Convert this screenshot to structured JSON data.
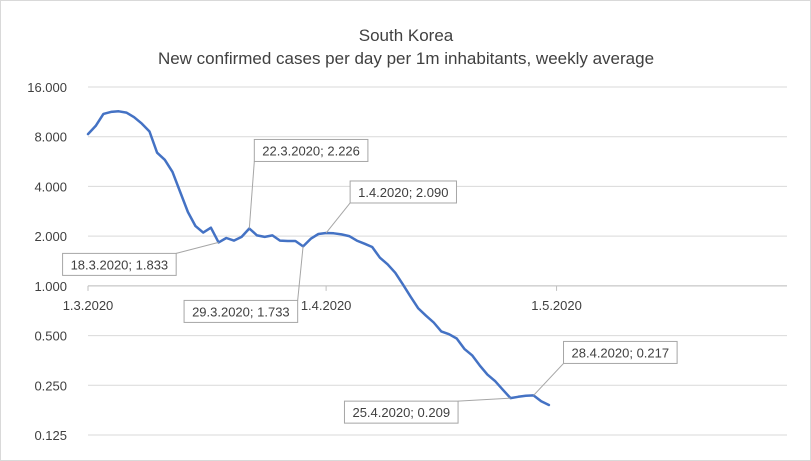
{
  "chart_data": {
    "type": "line",
    "title": [
      "South Korea",
      "New confirmed cases per day per 1m inhabitants, weekly average"
    ],
    "y_scale": "log2",
    "ylim": [
      0.125,
      16
    ],
    "y_ticks": [
      {
        "value": 16,
        "label": "16.000"
      },
      {
        "value": 8,
        "label": "8.000"
      },
      {
        "value": 4,
        "label": "4.000"
      },
      {
        "value": 2,
        "label": "2.000"
      },
      {
        "value": 1,
        "label": "1.000"
      },
      {
        "value": 0.5,
        "label": "0.500"
      },
      {
        "value": 0.25,
        "label": "0.250"
      },
      {
        "value": 0.125,
        "label": "0.125"
      }
    ],
    "x_axis_crosses_at": 1,
    "xlim": [
      "2020-03-01",
      "2020-05-31"
    ],
    "x_ticks": [
      {
        "value": "2020-03-01",
        "label": "1.3.2020"
      },
      {
        "value": "2020-04-01",
        "label": "1.4.2020"
      },
      {
        "value": "2020-05-01",
        "label": "1.5.2020"
      }
    ],
    "grid": true,
    "series_color": "#4472c4",
    "series": [
      {
        "x": [
          "2020-03-01",
          "2020-03-02",
          "2020-03-03",
          "2020-03-04",
          "2020-03-05",
          "2020-03-06",
          "2020-03-07",
          "2020-03-08",
          "2020-03-09",
          "2020-03-10",
          "2020-03-11",
          "2020-03-12",
          "2020-03-13",
          "2020-03-14",
          "2020-03-15",
          "2020-03-16",
          "2020-03-17",
          "2020-03-18",
          "2020-03-19",
          "2020-03-20",
          "2020-03-21",
          "2020-03-22",
          "2020-03-23",
          "2020-03-24",
          "2020-03-25",
          "2020-03-26",
          "2020-03-27",
          "2020-03-28",
          "2020-03-29",
          "2020-03-30",
          "2020-03-31",
          "2020-04-01",
          "2020-04-02",
          "2020-04-03",
          "2020-04-04",
          "2020-04-05",
          "2020-04-06",
          "2020-04-07",
          "2020-04-08",
          "2020-04-09",
          "2020-04-10",
          "2020-04-11",
          "2020-04-12",
          "2020-04-13",
          "2020-04-14",
          "2020-04-15",
          "2020-04-16",
          "2020-04-17",
          "2020-04-18",
          "2020-04-19",
          "2020-04-20",
          "2020-04-21",
          "2020-04-22",
          "2020-04-23",
          "2020-04-24",
          "2020-04-25",
          "2020-04-26",
          "2020-04-27",
          "2020-04-28",
          "2020-04-29",
          "2020-04-30"
        ],
        "y": [
          8.3,
          9.3,
          11.0,
          11.3,
          11.4,
          11.2,
          10.5,
          9.6,
          8.6,
          6.4,
          5.8,
          4.9,
          3.7,
          2.8,
          2.3,
          2.1,
          2.25,
          1.833,
          1.95,
          1.88,
          1.98,
          2.226,
          2.02,
          1.98,
          2.02,
          1.88,
          1.87,
          1.87,
          1.733,
          1.93,
          2.06,
          2.09,
          2.08,
          2.05,
          2.0,
          1.88,
          1.8,
          1.72,
          1.48,
          1.35,
          1.2,
          1.02,
          0.86,
          0.73,
          0.66,
          0.6,
          0.53,
          0.51,
          0.48,
          0.415,
          0.38,
          0.33,
          0.29,
          0.265,
          0.235,
          0.209,
          0.213,
          0.216,
          0.217,
          0.2,
          0.19
        ]
      }
    ],
    "annotations": [
      {
        "label": "22.3.2020; 2.226",
        "x": "2020-03-22",
        "y": 2.226,
        "position": "above"
      },
      {
        "label": "1.4.2020; 2.090",
        "x": "2020-04-01",
        "y": 2.09,
        "position": "above-right"
      },
      {
        "label": "18.3.2020; 1.833",
        "x": "2020-03-18",
        "y": 1.833,
        "position": "below-left"
      },
      {
        "label": "29.3.2020; 1.733",
        "x": "2020-03-29",
        "y": 1.733,
        "position": "below"
      },
      {
        "label": "28.4.2020; 0.217",
        "x": "2020-04-28",
        "y": 0.217,
        "position": "above-right"
      },
      {
        "label": "25.4.2020; 0.209",
        "x": "2020-04-25",
        "y": 0.209,
        "position": "below-left"
      }
    ]
  }
}
